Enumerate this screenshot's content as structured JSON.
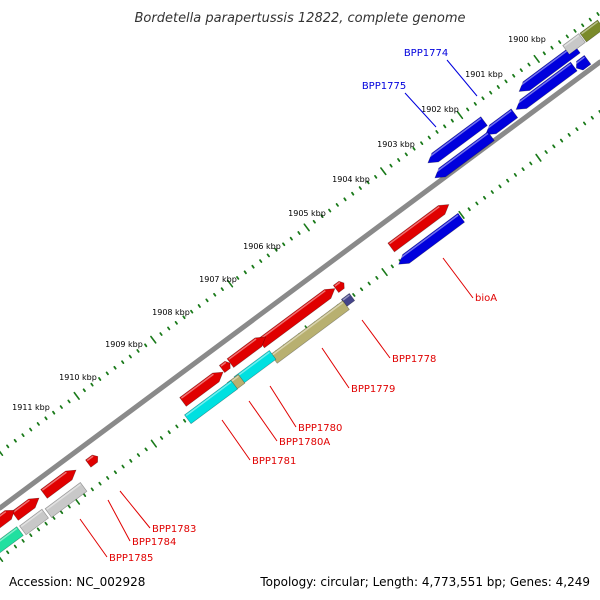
{
  "title": "Bordetella parapertussis 12822, complete genome",
  "footer": {
    "accession": "Accession: NC_002928",
    "summary": "Topology: circular; Length: 4,773,551 bp; Genes: 4,249"
  },
  "colors": {
    "backbone": "#808080",
    "ticks": "#1a7a1a",
    "forward_gene": "#e00000",
    "reverse_gene": "#0000dd",
    "pseudogene": "#c8c8c8",
    "rna_cyan": "#00e0e0",
    "olive": "#b8b070",
    "dark_olive": "#7a8a2a",
    "mint": "#20e0a0",
    "navy": "#44448a"
  },
  "kbp_labels": [
    {
      "label": "1900 kbp"
    },
    {
      "label": "1901 kbp"
    },
    {
      "label": "1902 kbp"
    },
    {
      "label": "1903 kbp"
    },
    {
      "label": "1904 kbp"
    },
    {
      "label": "1905 kbp"
    },
    {
      "label": "1906 kbp"
    },
    {
      "label": "1907 kbp"
    },
    {
      "label": "1908 kbp"
    },
    {
      "label": "1909 kbp"
    },
    {
      "label": "1910 kbp"
    },
    {
      "label": "1911 kbp"
    }
  ],
  "gene_labels": [
    {
      "label": "BPP1774",
      "strand": "reverse"
    },
    {
      "label": "BPP1775",
      "strand": "reverse"
    },
    {
      "label": "bioA",
      "strand": "forward"
    },
    {
      "label": "BPP1778",
      "strand": "forward"
    },
    {
      "label": "BPP1779",
      "strand": "forward"
    },
    {
      "label": "BPP1780",
      "strand": "forward"
    },
    {
      "label": "BPP1780A",
      "strand": "forward"
    },
    {
      "label": "BPP1781",
      "strand": "forward"
    },
    {
      "label": "BPP1783",
      "strand": "forward"
    },
    {
      "label": "BPP1784",
      "strand": "forward"
    },
    {
      "label": "BPP1785",
      "strand": "forward"
    }
  ]
}
